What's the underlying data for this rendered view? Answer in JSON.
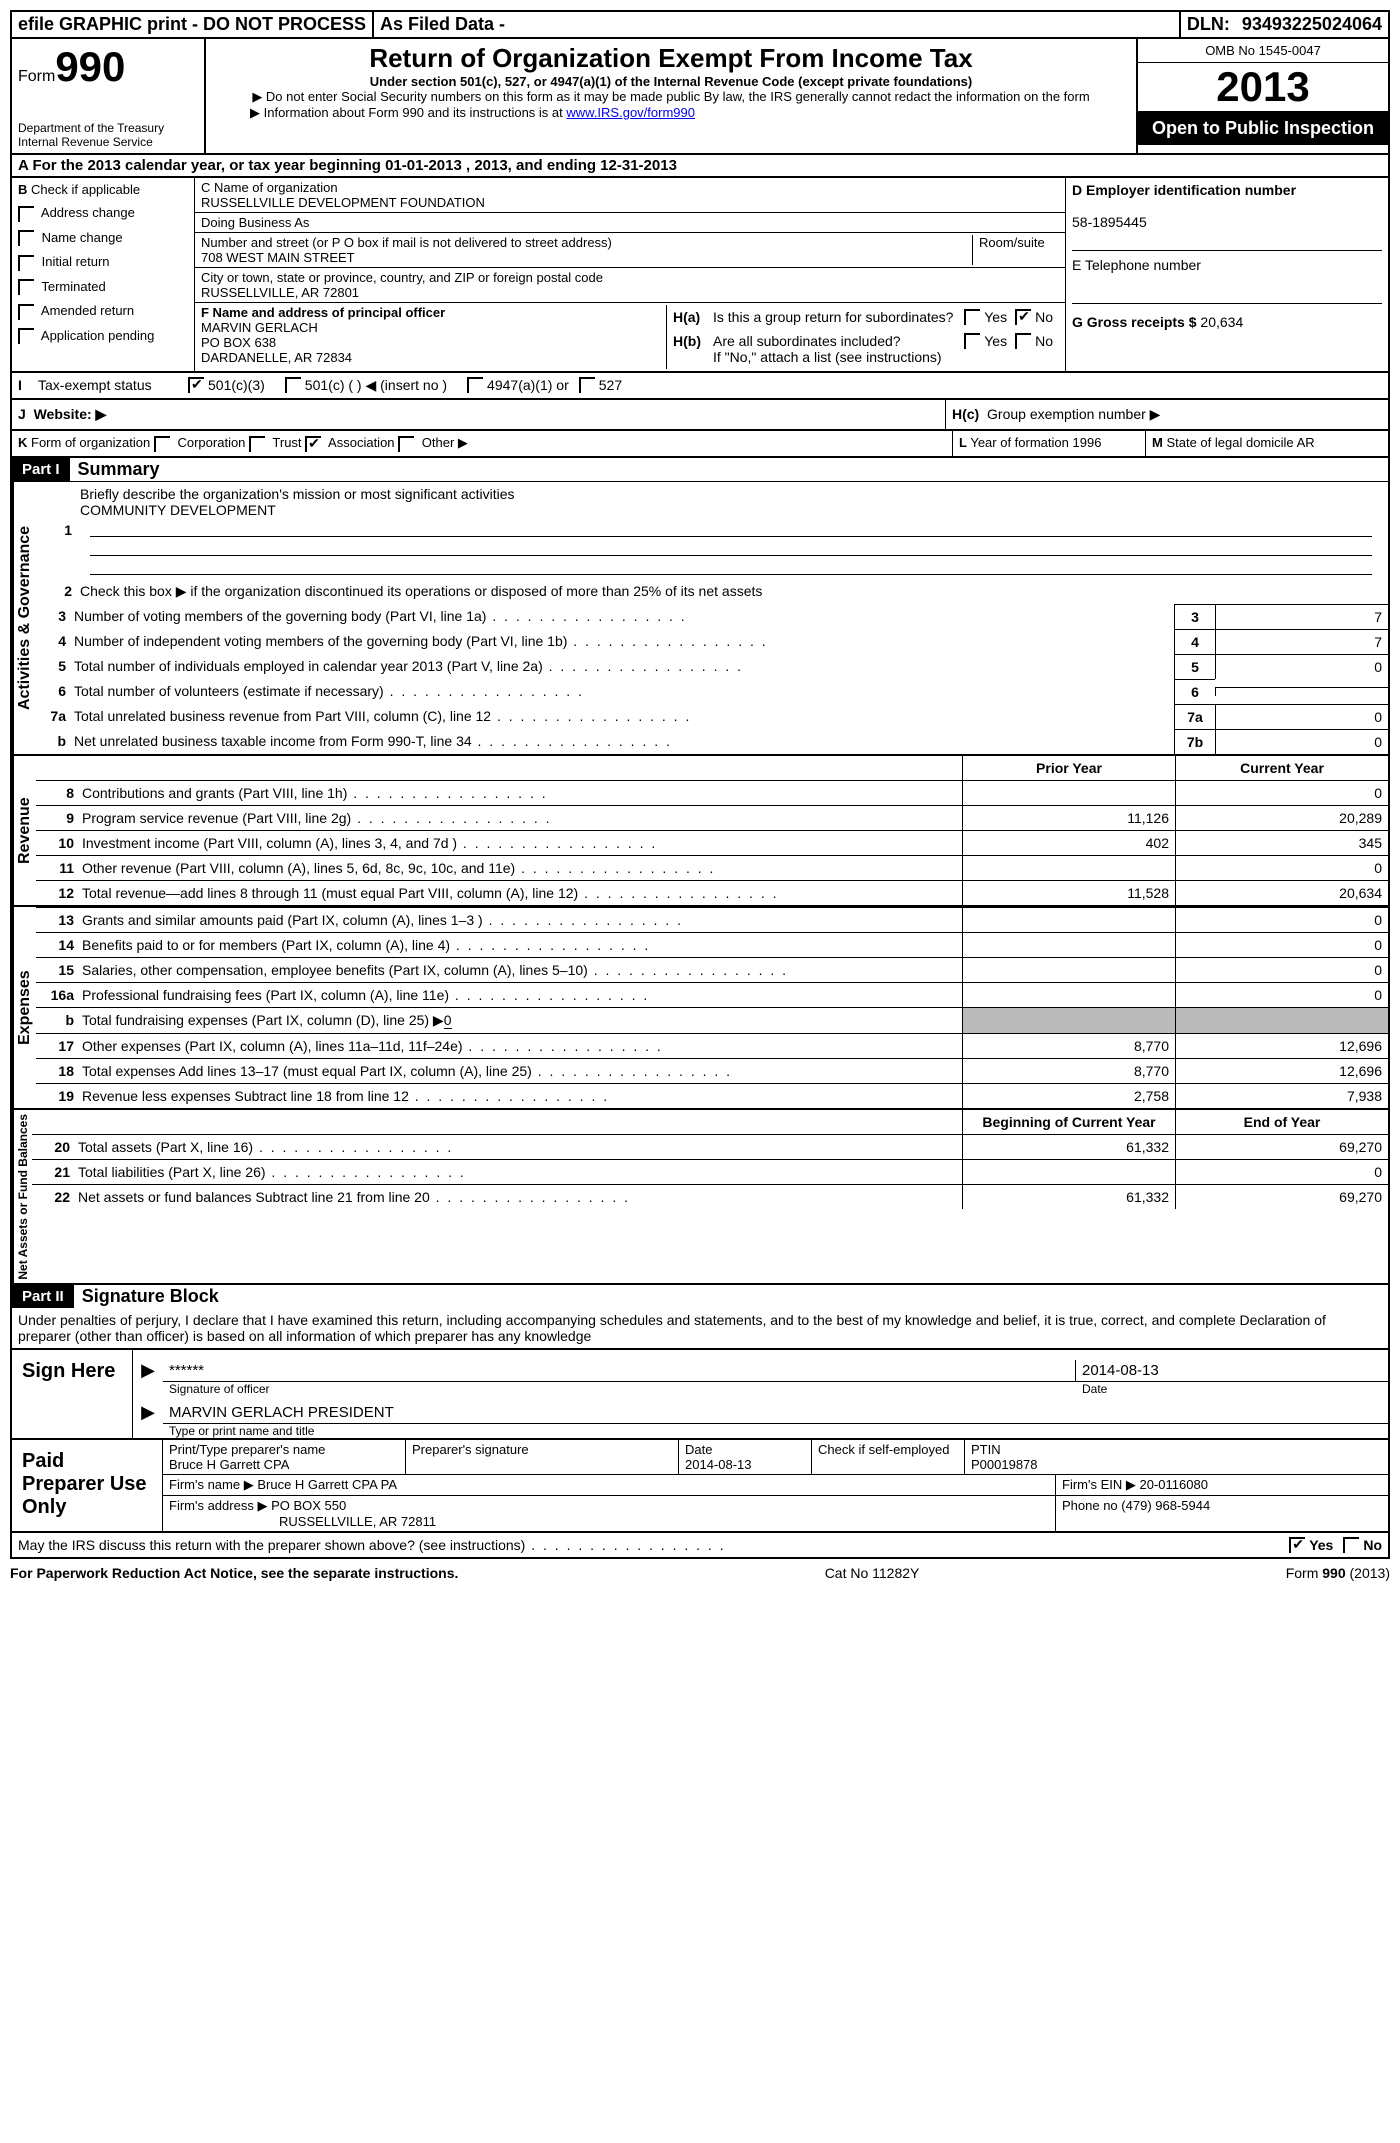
{
  "topbar": {
    "efile": "efile GRAPHIC print - DO NOT PROCESS",
    "asfiled": "As Filed Data -",
    "dln_label": "DLN:",
    "dln": "93493225024064"
  },
  "header": {
    "form_label": "Form",
    "form_num": "990",
    "dept": "Department of the Treasury",
    "irs": "Internal Revenue Service",
    "title": "Return of Organization Exempt From Income Tax",
    "subtitle": "Under section 501(c), 527, or 4947(a)(1) of the Internal Revenue Code (except private foundations)",
    "note1": "▶ Do not enter Social Security numbers on this form as it may be made public  By law, the IRS generally cannot redact the information on the form",
    "note2_pre": "▶ Information about Form 990 and its instructions is at ",
    "note2_link": "www.IRS.gov/form990",
    "omb": "OMB No  1545-0047",
    "year": "2013",
    "open": "Open to Public Inspection"
  },
  "sectionA": {
    "text": "A  For the 2013 calendar year, or tax year beginning 01-01-2013     , 2013, and ending 12-31-2013"
  },
  "sectionB": {
    "label": "B",
    "check": "Check if applicable",
    "items": [
      "Address change",
      "Name change",
      "Initial return",
      "Terminated",
      "Amended return",
      "Application pending"
    ]
  },
  "sectionC": {
    "name_label": "C Name of organization",
    "name": "RUSSELLVILLE DEVELOPMENT FOUNDATION",
    "dba_label": "Doing Business As",
    "dba": "",
    "addr_label": "Number and street (or P O  box if mail is not delivered to street address)",
    "room_label": "Room/suite",
    "addr": "708 WEST MAIN STREET",
    "city_label": "City or town, state or province, country, and ZIP or foreign postal code",
    "city": "RUSSELLVILLE, AR  72801"
  },
  "sectionD": {
    "label": "D Employer identification number",
    "ein": "58-1895445"
  },
  "sectionE": {
    "label": "E Telephone number",
    "val": ""
  },
  "sectionG": {
    "label": "G Gross receipts $",
    "val": "20,634"
  },
  "sectionF": {
    "label": "F    Name and address of principal officer",
    "name": "MARVIN GERLACH",
    "addr1": "PO BOX 638",
    "addr2": "DARDANELLE, AR  72834"
  },
  "sectionH": {
    "ha_label": "H(a)",
    "ha_text": "Is this a group return for subordinates?",
    "hb_label": "H(b)",
    "hb_text": "Are all subordinates included?",
    "hb_note": "If \"No,\" attach a list  (see instructions)",
    "hc_label": "H(c)",
    "hc_text": "Group exemption number ▶",
    "yes": "Yes",
    "no": "No"
  },
  "sectionI": {
    "label": "I",
    "text": "Tax-exempt status",
    "opt1": "501(c)(3)",
    "opt2": "501(c) (   ) ◀ (insert no )",
    "opt3": "4947(a)(1) or",
    "opt4": "527"
  },
  "sectionJ": {
    "label": "J",
    "text": "Website: ▶"
  },
  "sectionK": {
    "label": "K",
    "text": "Form of organization",
    "opts": [
      "Corporation",
      "Trust",
      "Association",
      "Other ▶"
    ]
  },
  "sectionL": {
    "label": "L",
    "text": "Year of formation",
    "val": "1996"
  },
  "sectionM": {
    "label": "M",
    "text": "State of legal domicile",
    "val": "AR"
  },
  "part1": {
    "num": "Part I",
    "title": "Summary"
  },
  "activities": {
    "label": "Activities & Governance",
    "l1_num": "1",
    "l1": "Briefly describe the organization's mission or most significant activities",
    "l1_val": "COMMUNITY DEVELOPMENT",
    "l2_num": "2",
    "l2": "Check this box ▶     if the organization discontinued its operations or disposed of more than 25% of its net assets",
    "rows": [
      {
        "n": "3",
        "t": "Number of voting members of the governing body (Part VI, line 1a)",
        "b": "3",
        "v": "7"
      },
      {
        "n": "4",
        "t": "Number of independent voting members of the governing body (Part VI, line 1b)",
        "b": "4",
        "v": "7"
      },
      {
        "n": "5",
        "t": "Total number of individuals employed in calendar year 2013 (Part V, line 2a)",
        "b": "5",
        "v": "0"
      },
      {
        "n": "6",
        "t": "Total number of volunteers (estimate if necessary)",
        "b": "6",
        "v": ""
      },
      {
        "n": "7a",
        "t": "Total unrelated business revenue from Part VIII, column (C), line 12",
        "b": "7a",
        "v": "0"
      },
      {
        "n": "b",
        "t": "Net unrelated business taxable income from Form 990-T, line 34",
        "b": "7b",
        "v": "0"
      }
    ]
  },
  "revenue": {
    "label": "Revenue",
    "head_prior": "Prior Year",
    "head_curr": "Current Year",
    "rows": [
      {
        "n": "8",
        "t": "Contributions and grants (Part VIII, line 1h)",
        "p": "",
        "c": "0"
      },
      {
        "n": "9",
        "t": "Program service revenue (Part VIII, line 2g)",
        "p": "11,126",
        "c": "20,289"
      },
      {
        "n": "10",
        "t": "Investment income (Part VIII, column (A), lines 3, 4, and 7d )",
        "p": "402",
        "c": "345"
      },
      {
        "n": "11",
        "t": "Other revenue (Part VIII, column (A), lines 5, 6d, 8c, 9c, 10c, and 11e)",
        "p": "",
        "c": "0"
      },
      {
        "n": "12",
        "t": "Total revenue—add lines 8 through 11 (must equal Part VIII, column (A), line 12)",
        "p": "11,528",
        "c": "20,634"
      }
    ]
  },
  "expenses": {
    "label": "Expenses",
    "rows": [
      {
        "n": "13",
        "t": "Grants and similar amounts paid (Part IX, column (A), lines 1–3 )",
        "p": "",
        "c": "0"
      },
      {
        "n": "14",
        "t": "Benefits paid to or for members (Part IX, column (A), line 4)",
        "p": "",
        "c": "0"
      },
      {
        "n": "15",
        "t": "Salaries, other compensation, employee benefits (Part IX, column (A), lines 5–10)",
        "p": "",
        "c": "0"
      },
      {
        "n": "16a",
        "t": "Professional fundraising fees (Part IX, column (A), line 11e)",
        "p": "",
        "c": "0"
      }
    ],
    "l16b_n": "b",
    "l16b": "Total fundraising expenses (Part IX, column (D), line 25) ▶",
    "l16b_v": "0",
    "rows2": [
      {
        "n": "17",
        "t": "Other expenses (Part IX, column (A), lines 11a–11d, 11f–24e)",
        "p": "8,770",
        "c": "12,696"
      },
      {
        "n": "18",
        "t": "Total expenses  Add lines 13–17 (must equal Part IX, column (A), line 25)",
        "p": "8,770",
        "c": "12,696"
      },
      {
        "n": "19",
        "t": "Revenue less expenses  Subtract line 18 from line 12",
        "p": "2,758",
        "c": "7,938"
      }
    ]
  },
  "netassets": {
    "label": "Net Assets or Fund Balances",
    "head_begin": "Beginning of Current Year",
    "head_end": "End of Year",
    "rows": [
      {
        "n": "20",
        "t": "Total assets (Part X, line 16)",
        "p": "61,332",
        "c": "69,270"
      },
      {
        "n": "21",
        "t": "Total liabilities (Part X, line 26)",
        "p": "",
        "c": "0"
      },
      {
        "n": "22",
        "t": "Net assets or fund balances  Subtract line 21 from line 20",
        "p": "61,332",
        "c": "69,270"
      }
    ]
  },
  "part2": {
    "num": "Part II",
    "title": "Signature Block",
    "decl": "Under penalties of perjury, I declare that I have examined this return, including accompanying schedules and statements, and to the best of my knowledge and belief, it is true, correct, and complete  Declaration of preparer (other than officer) is based on all information of which preparer has any knowledge"
  },
  "sign": {
    "label": "Sign Here",
    "sig_stars": "******",
    "sig_label": "Signature of officer",
    "date": "2014-08-13",
    "date_label": "Date",
    "name": "MARVIN GERLACH PRESIDENT",
    "name_label": "Type or print name and title"
  },
  "paid": {
    "label": "Paid Preparer Use Only",
    "h1": "Print/Type preparer's name",
    "h1v": "Bruce H Garrett CPA",
    "h2": "Preparer's signature",
    "h3": "Date",
    "h3v": "2014-08-13",
    "h4": "Check       if self-employed",
    "h5": "PTIN",
    "h5v": "P00019878",
    "firm_name_l": "Firm's name    ▶",
    "firm_name": "Bruce H Garrett CPA PA",
    "firm_ein_l": "Firm's EIN ▶",
    "firm_ein": "20-0116080",
    "firm_addr_l": "Firm's address ▶",
    "firm_addr1": "PO BOX 550",
    "firm_addr2": "RUSSELLVILLE, AR  72811",
    "phone_l": "Phone no",
    "phone": "(479) 968-5944"
  },
  "discuss": {
    "text": "May the IRS discuss this return with the preparer shown above? (see instructions)",
    "yes": "Yes",
    "no": "No"
  },
  "footer": {
    "left": "For Paperwork Reduction Act Notice, see the separate instructions.",
    "mid": "Cat No  11282Y",
    "right": "Form 990 (2013)"
  }
}
